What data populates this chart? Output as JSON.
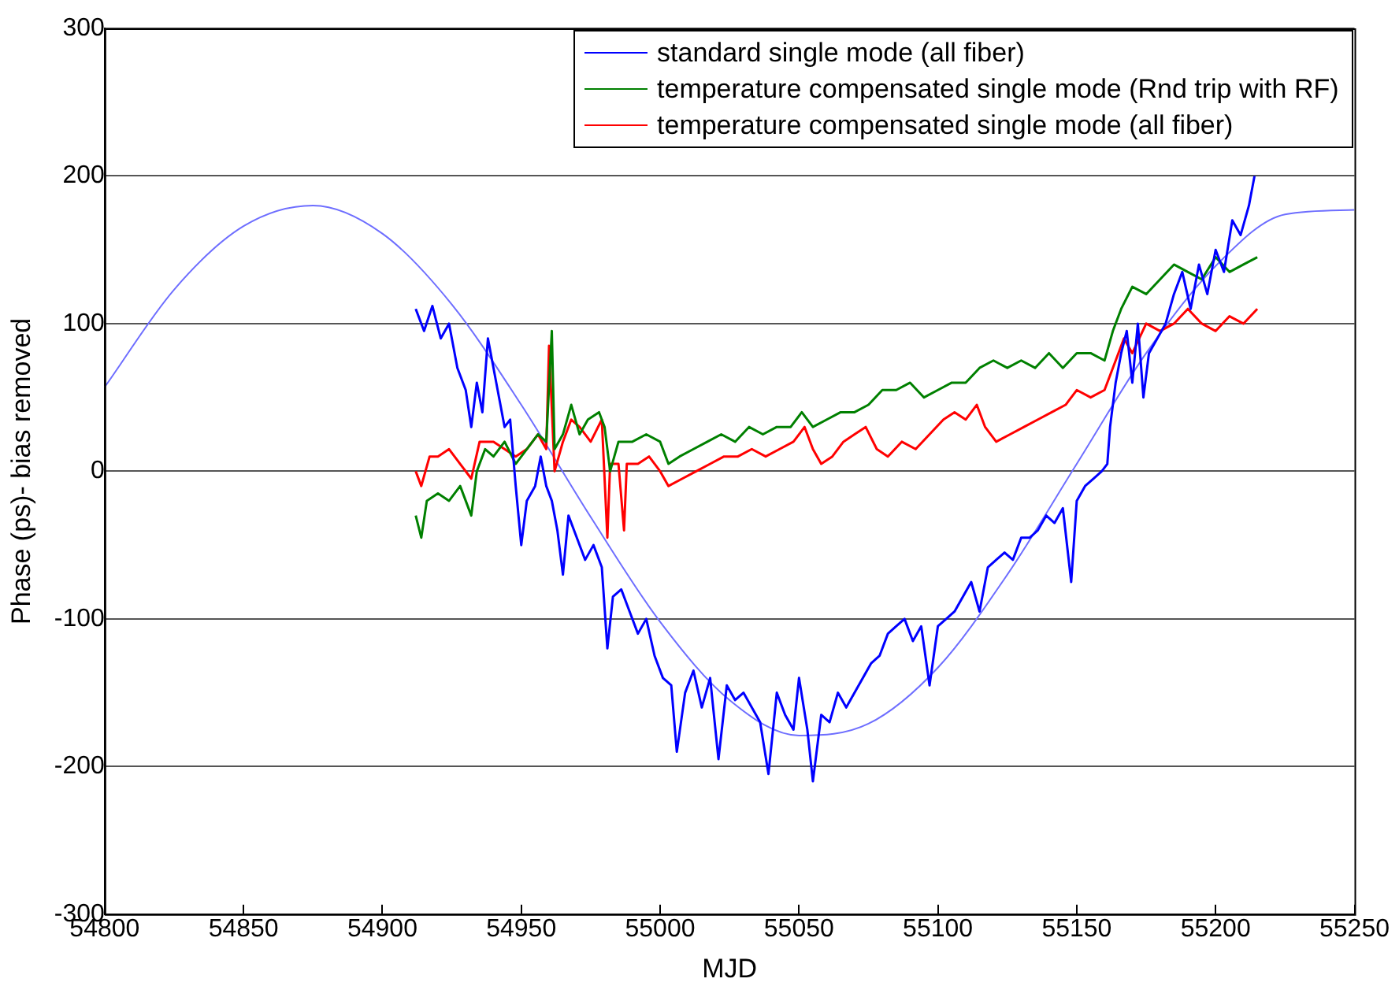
{
  "chart_data": {
    "type": "line",
    "xlabel": "MJD",
    "ylabel": "Phase (ps)- bias removed",
    "xlim": [
      54800,
      55250
    ],
    "xticks": [
      54800,
      54850,
      54900,
      54950,
      55000,
      55050,
      55100,
      55150,
      55200,
      55250
    ],
    "ylim": [
      -300,
      300
    ],
    "yticks": [
      -300,
      -200,
      -100,
      0,
      100,
      200,
      300
    ],
    "grid": "y",
    "legend": "top right",
    "marker": "none",
    "line_style": "solid",
    "series": [
      {
        "name": "standard single mode (all fiber)",
        "color": "#0000ff",
        "x": [
          54912,
          54915,
          54918,
          54921,
          54924,
          54927,
          54930,
          54932,
          54934,
          54936,
          54938,
          54940,
          54942,
          54944,
          54946,
          54948,
          54950,
          54952,
          54955,
          54957,
          54959,
          54961,
          54963,
          54965,
          54967,
          54970,
          54973,
          54976,
          54979,
          54981,
          54983,
          54986,
          54989,
          54992,
          54995,
          54998,
          55001,
          55004,
          55006,
          55009,
          55012,
          55015,
          55018,
          55021,
          55024,
          55027,
          55030,
          55033,
          55036,
          55039,
          55042,
          55045,
          55048,
          55050,
          55053,
          55055,
          55058,
          55061,
          55064,
          55067,
          55070,
          55073,
          55076,
          55079,
          55082,
          55085,
          55088,
          55091,
          55094,
          55097,
          55100,
          55103,
          55106,
          55109,
          55112,
          55115,
          55118,
          55121,
          55124,
          55127,
          55130,
          55133,
          55136,
          55139,
          55142,
          55145,
          55148,
          55150,
          55153,
          55156,
          55159,
          55161,
          55162,
          55164,
          55166,
          55168,
          55170,
          55172,
          55174,
          55176,
          55179,
          55182,
          55185,
          55188,
          55191,
          55194,
          55197,
          55200,
          55203,
          55206,
          55209,
          55212,
          55214
        ],
        "values": [
          110,
          95,
          112,
          90,
          100,
          70,
          55,
          30,
          60,
          40,
          90,
          70,
          50,
          30,
          35,
          -10,
          -50,
          -20,
          -10,
          10,
          -10,
          -20,
          -40,
          -70,
          -30,
          -45,
          -60,
          -50,
          -65,
          -120,
          -85,
          -80,
          -95,
          -110,
          -100,
          -125,
          -140,
          -145,
          -190,
          -150,
          -135,
          -160,
          -140,
          -195,
          -145,
          -155,
          -150,
          -160,
          -170,
          -205,
          -150,
          -165,
          -175,
          -140,
          -175,
          -210,
          -165,
          -170,
          -150,
          -160,
          -150,
          -140,
          -130,
          -125,
          -110,
          -105,
          -100,
          -115,
          -105,
          -145,
          -105,
          -100,
          -95,
          -85,
          -75,
          -95,
          -65,
          -60,
          -55,
          -60,
          -45,
          -45,
          -40,
          -30,
          -35,
          -25,
          -75,
          -20,
          -10,
          -5,
          0,
          5,
          30,
          60,
          80,
          95,
          60,
          100,
          50,
          80,
          90,
          100,
          120,
          135,
          110,
          140,
          120,
          150,
          135,
          170,
          160,
          180,
          200
        ]
      },
      {
        "name": "temperature compensated single mode (Rnd trip with RF)",
        "color": "#008000",
        "x": [
          54912,
          54914,
          54916,
          54920,
          54924,
          54928,
          54932,
          54934,
          54937,
          54940,
          54944,
          54948,
          54952,
          54956,
          54959,
          54961,
          54962,
          54965,
          54968,
          54971,
          54974,
          54978,
          54980,
          54982,
          54985,
          54990,
          54995,
          55000,
          55003,
          55007,
          55012,
          55017,
          55022,
          55027,
          55032,
          55037,
          55042,
          55047,
          55051,
          55055,
          55060,
          55065,
          55070,
          55075,
          55080,
          55085,
          55090,
          55095,
          55100,
          55105,
          55110,
          55115,
          55120,
          55125,
          55130,
          55135,
          55140,
          55145,
          55150,
          55155,
          55160,
          55163,
          55166,
          55170,
          55175,
          55180,
          55185,
          55190,
          55195,
          55200,
          55205,
          55210,
          55215
        ],
        "values": [
          -30,
          -45,
          -20,
          -15,
          -20,
          -10,
          -30,
          0,
          15,
          10,
          20,
          5,
          15,
          25,
          20,
          95,
          15,
          25,
          45,
          25,
          35,
          40,
          30,
          0,
          20,
          20,
          25,
          20,
          5,
          10,
          15,
          20,
          25,
          20,
          30,
          25,
          30,
          30,
          40,
          30,
          35,
          40,
          40,
          45,
          55,
          55,
          60,
          50,
          55,
          60,
          60,
          70,
          75,
          70,
          75,
          70,
          80,
          70,
          80,
          80,
          75,
          95,
          110,
          125,
          120,
          130,
          140,
          135,
          130,
          145,
          135,
          140,
          145
        ]
      },
      {
        "name": "temperature compensated single mode (all fiber)",
        "color": "#ff0000",
        "x": [
          54912,
          54914,
          54917,
          54920,
          54924,
          54928,
          54932,
          54935,
          54940,
          54944,
          54948,
          54952,
          54956,
          54959,
          54960,
          54962,
          54965,
          54968,
          54971,
          54975,
          54979,
          54981,
          54982,
          54985,
          54987,
          54988,
          54992,
          54996,
          55000,
          55003,
          55008,
          55013,
          55018,
          55023,
          55028,
          55033,
          55038,
          55043,
          55048,
          55052,
          55055,
          55058,
          55062,
          55066,
          55070,
          55074,
          55078,
          55082,
          55087,
          55092,
          55097,
          55102,
          55106,
          55110,
          55114,
          55117,
          55121,
          55126,
          55131,
          55136,
          55141,
          55146,
          55150,
          55155,
          55160,
          55163,
          55167,
          55170,
          55175,
          55180,
          55185,
          55190,
          55195,
          55200,
          55205,
          55210,
          55215
        ],
        "values": [
          0,
          -10,
          10,
          10,
          15,
          5,
          -5,
          20,
          20,
          15,
          10,
          15,
          25,
          15,
          85,
          0,
          20,
          35,
          30,
          20,
          35,
          -45,
          5,
          5,
          -40,
          5,
          5,
          10,
          0,
          -10,
          -5,
          0,
          5,
          10,
          10,
          15,
          10,
          15,
          20,
          30,
          15,
          5,
          10,
          20,
          25,
          30,
          15,
          10,
          20,
          15,
          25,
          35,
          40,
          35,
          45,
          30,
          20,
          25,
          30,
          35,
          40,
          45,
          55,
          50,
          55,
          70,
          90,
          80,
          100,
          95,
          100,
          110,
          100,
          95,
          105,
          100,
          110
        ]
      },
      {
        "type": "line",
        "color": "#6e6eff",
        "x": [
          54800,
          54825,
          54850,
          54875,
          54900,
          54925,
          54950,
          54975,
          55000,
          55025,
          55050,
          55075,
          55100,
          55125,
          55150,
          55175,
          55200,
          55225,
          55250
        ],
        "values": [
          57,
          123,
          166,
          180,
          161,
          113,
          45,
          -31,
          -102,
          -155,
          -179,
          -171,
          -133,
          -70,
          5,
          80,
          139,
          174,
          177
        ]
      }
    ]
  }
}
